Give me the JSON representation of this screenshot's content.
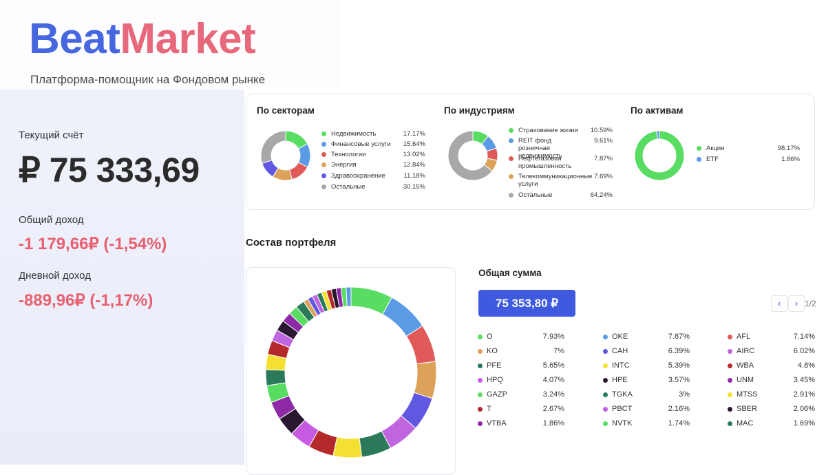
{
  "brand": {
    "name_part1": "Beat",
    "name_part2": "Market",
    "tagline": "Платформа-помощник на Фондовом рынке"
  },
  "account": {
    "current_label": "Текущий счёт",
    "current_value": "₽ 75 333,69",
    "total_income_label": "Общий доход",
    "total_income_value": "-1 179,66₽ (-1,54%)",
    "daily_income_label": "Дневной доход",
    "daily_income_value": "-889,96₽ (-1,17%)"
  },
  "breakdowns": [
    {
      "title": "По секторам",
      "items": [
        {
          "name": "Недвижимость",
          "value": "17.17%",
          "pct": 17.17,
          "color": "#58dc62"
        },
        {
          "name": "Финансовые услуги",
          "value": "15.64%",
          "pct": 15.64,
          "color": "#5b9ae4"
        },
        {
          "name": "Технологии",
          "value": "13.02%",
          "pct": 13.02,
          "color": "#e05a5a"
        },
        {
          "name": "Энергия",
          "value": "12.84%",
          "pct": 12.84,
          "color": "#dca25a"
        },
        {
          "name": "Здравоохранение",
          "value": "11.18%",
          "pct": 11.18,
          "color": "#6058e0"
        },
        {
          "name": "Остальные",
          "value": "30.15%",
          "pct": 30.15,
          "color": "#a8a8a8"
        }
      ]
    },
    {
      "title": "По индустриям",
      "items": [
        {
          "name": "Страхование жизни",
          "value": "10.59%",
          "pct": 10.59,
          "color": "#58dc62"
        },
        {
          "name": "REIT фонд розничная недвижимость",
          "value": "9.61%",
          "pct": 9.61,
          "color": "#5b9ae4"
        },
        {
          "name": "Нефтегазовая промышленность",
          "value": "7.87%",
          "pct": 7.87,
          "color": "#e05a5a"
        },
        {
          "name": "Телекоммуникационные услуги",
          "value": "7.69%",
          "pct": 7.69,
          "color": "#dca25a"
        },
        {
          "name": "Остальные",
          "value": "64.24%",
          "pct": 64.24,
          "color": "#a8a8a8"
        }
      ]
    },
    {
      "title": "По активам",
      "items": [
        {
          "name": "Акции",
          "value": "98.17%",
          "pct": 98.17,
          "color": "#58dc62"
        },
        {
          "name": "ETF",
          "value": "1.86%",
          "pct": 1.86,
          "color": "#5b9ae4"
        }
      ]
    }
  ],
  "portfolio": {
    "title": "Состав портфеля",
    "total_label": "Общая сумма",
    "total_value": "75 353,80 ₽",
    "pager": {
      "prev": "‹",
      "next": "›",
      "text": "1/2"
    },
    "holdings": [
      {
        "ticker": "O",
        "value": "7.93%",
        "pct": 7.93,
        "color": "#58dc62"
      },
      {
        "ticker": "OKE",
        "value": "7.87%",
        "pct": 7.87,
        "color": "#5b9ae4"
      },
      {
        "ticker": "AFL",
        "value": "7.14%",
        "pct": 7.14,
        "color": "#e05a5a"
      },
      {
        "ticker": "KO",
        "value": "7%",
        "pct": 7,
        "color": "#dca25a"
      },
      {
        "ticker": "CAH",
        "value": "6.39%",
        "pct": 6.39,
        "color": "#6058e0"
      },
      {
        "ticker": "AIRC",
        "value": "6.02%",
        "pct": 6.02,
        "color": "#c065e0"
      },
      {
        "ticker": "PFE",
        "value": "5.65%",
        "pct": 5.65,
        "color": "#2a7a5a"
      },
      {
        "ticker": "INTC",
        "value": "5.39%",
        "pct": 5.39,
        "color": "#f4e033"
      },
      {
        "ticker": "WBA",
        "value": "4.8%",
        "pct": 4.8,
        "color": "#b42a2a"
      },
      {
        "ticker": "HPQ",
        "value": "4.07%",
        "pct": 4.07,
        "color": "#c65ae0"
      },
      {
        "ticker": "HPE",
        "value": "3.57%",
        "pct": 3.57,
        "color": "#2a1830"
      },
      {
        "ticker": "UNM",
        "value": "3.45%",
        "pct": 3.45,
        "color": "#8e2aa8"
      },
      {
        "ticker": "GAZP",
        "value": "3.24%",
        "pct": 3.24,
        "color": "#58dc62"
      },
      {
        "ticker": "TGKA",
        "value": "3%",
        "pct": 3,
        "color": "#2a7a5a"
      },
      {
        "ticker": "MTSS",
        "value": "2.91%",
        "pct": 2.91,
        "color": "#f4e033"
      },
      {
        "ticker": "T",
        "value": "2.67%",
        "pct": 2.67,
        "color": "#b42a2a"
      },
      {
        "ticker": "PBCT",
        "value": "2.16%",
        "pct": 2.16,
        "color": "#c065e0"
      },
      {
        "ticker": "SBER",
        "value": "2.06%",
        "pct": 2.06,
        "color": "#2a1830"
      },
      {
        "ticker": "VTBA",
        "value": "1.86%",
        "pct": 1.86,
        "color": "#8e2aa8"
      },
      {
        "ticker": "NVTK",
        "value": "1.74%",
        "pct": 1.74,
        "color": "#58dc62"
      },
      {
        "ticker": "MAC",
        "value": "1.69%",
        "pct": 1.69,
        "color": "#2a7a5a"
      }
    ]
  }
}
